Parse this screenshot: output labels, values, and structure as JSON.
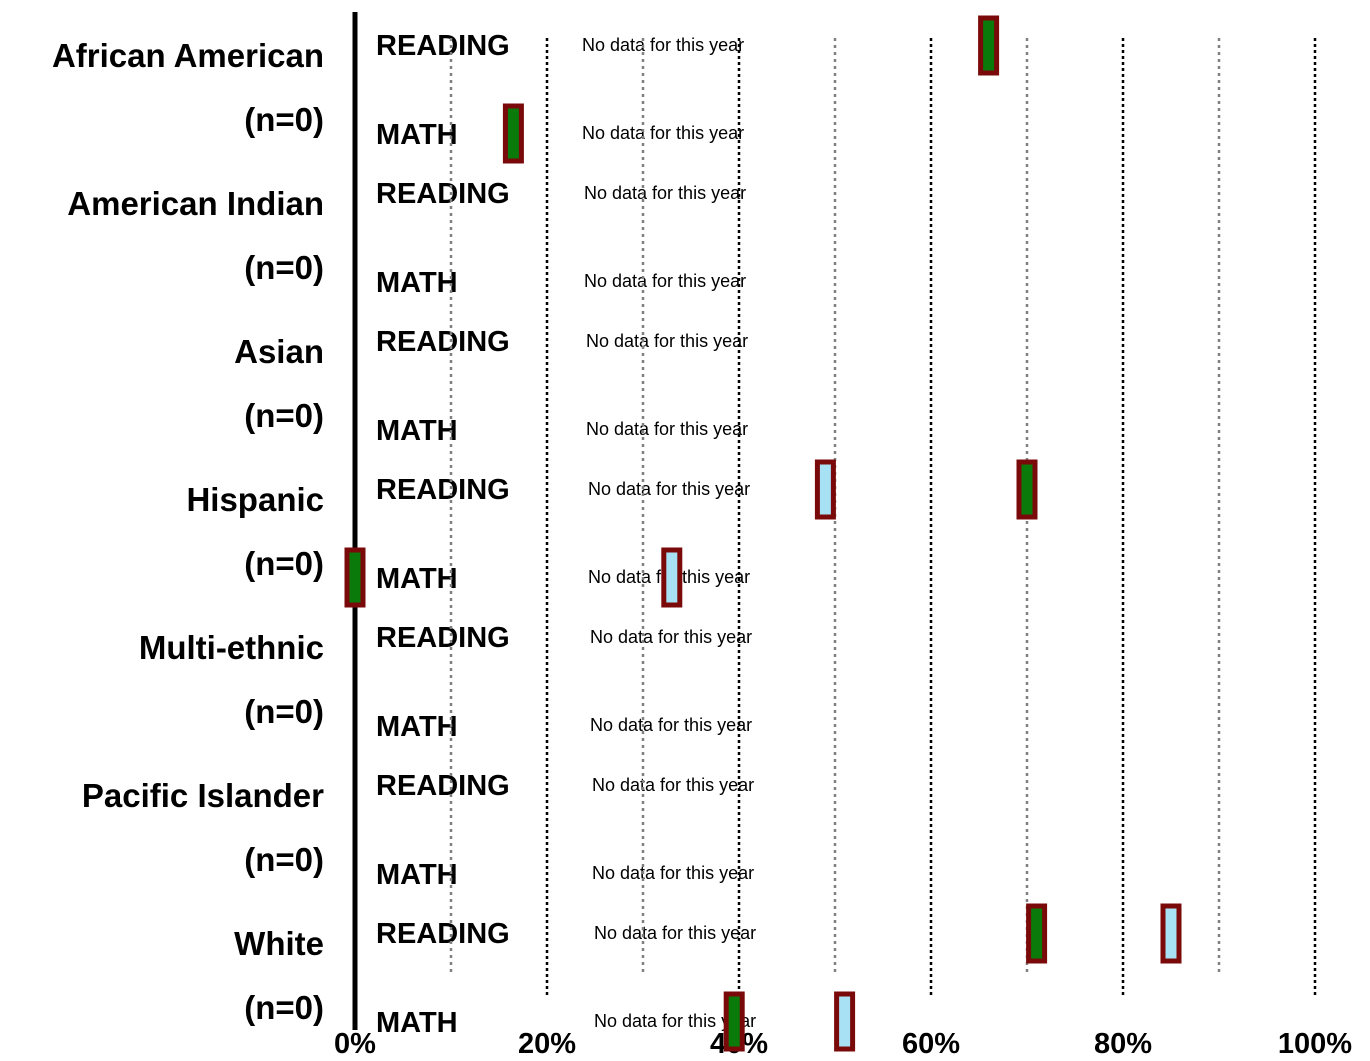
{
  "chart_data": {
    "type": "scatter",
    "title": "",
    "xlabel": "",
    "ylabel": "",
    "xlim": [
      0,
      100
    ],
    "x_tick_labels": [
      "0%",
      "20%",
      "40%",
      "60%",
      "80%",
      "100%"
    ],
    "grid": "dotted vertical lines every 10%",
    "no_data_text": "No data for this year",
    "groups": [
      {
        "name": "African American",
        "n_label": "(n=0)",
        "rows": [
          {
            "subject": "READING",
            "markers": [
              {
                "value": 66,
                "color": "#0a7a0a"
              }
            ]
          },
          {
            "subject": "MATH",
            "markers": [
              {
                "value": 16.5,
                "color": "#0a7a0a"
              }
            ]
          }
        ]
      },
      {
        "name": "American Indian",
        "n_label": "(n=0)",
        "rows": [
          {
            "subject": "READING",
            "markers": []
          },
          {
            "subject": "MATH",
            "markers": []
          }
        ]
      },
      {
        "name": "Asian",
        "n_label": "(n=0)",
        "rows": [
          {
            "subject": "READING",
            "markers": []
          },
          {
            "subject": "MATH",
            "markers": []
          }
        ]
      },
      {
        "name": "Hispanic",
        "n_label": "(n=0)",
        "rows": [
          {
            "subject": "READING",
            "markers": [
              {
                "value": 49,
                "color": "#a8e0f4"
              },
              {
                "value": 70,
                "color": "#0a7a0a"
              }
            ]
          },
          {
            "subject": "MATH",
            "markers": [
              {
                "value": 0,
                "color": "#0a7a0a"
              },
              {
                "value": 33,
                "color": "#a8e0f4"
              }
            ]
          }
        ]
      },
      {
        "name": "Multi-ethnic",
        "n_label": "(n=0)",
        "rows": [
          {
            "subject": "READING",
            "markers": []
          },
          {
            "subject": "MATH",
            "markers": []
          }
        ]
      },
      {
        "name": "Pacific Islander",
        "n_label": "(n=0)",
        "rows": [
          {
            "subject": "READING",
            "markers": []
          },
          {
            "subject": "MATH",
            "markers": []
          }
        ]
      },
      {
        "name": "White",
        "n_label": "(n=0)",
        "rows": [
          {
            "subject": "READING",
            "markers": [
              {
                "value": 71,
                "color": "#0a7a0a"
              },
              {
                "value": 85,
                "color": "#a8e0f4"
              }
            ]
          },
          {
            "subject": "MATH",
            "markers": [
              {
                "value": 39.5,
                "color": "#0a7a0a"
              },
              {
                "value": 51,
                "color": "#a8e0f4"
              }
            ]
          }
        ]
      }
    ],
    "colors": {
      "marker_border": "#7a0a0a",
      "axis": "#000000",
      "grid_major": "#000000",
      "grid_minor": "#808080"
    }
  }
}
